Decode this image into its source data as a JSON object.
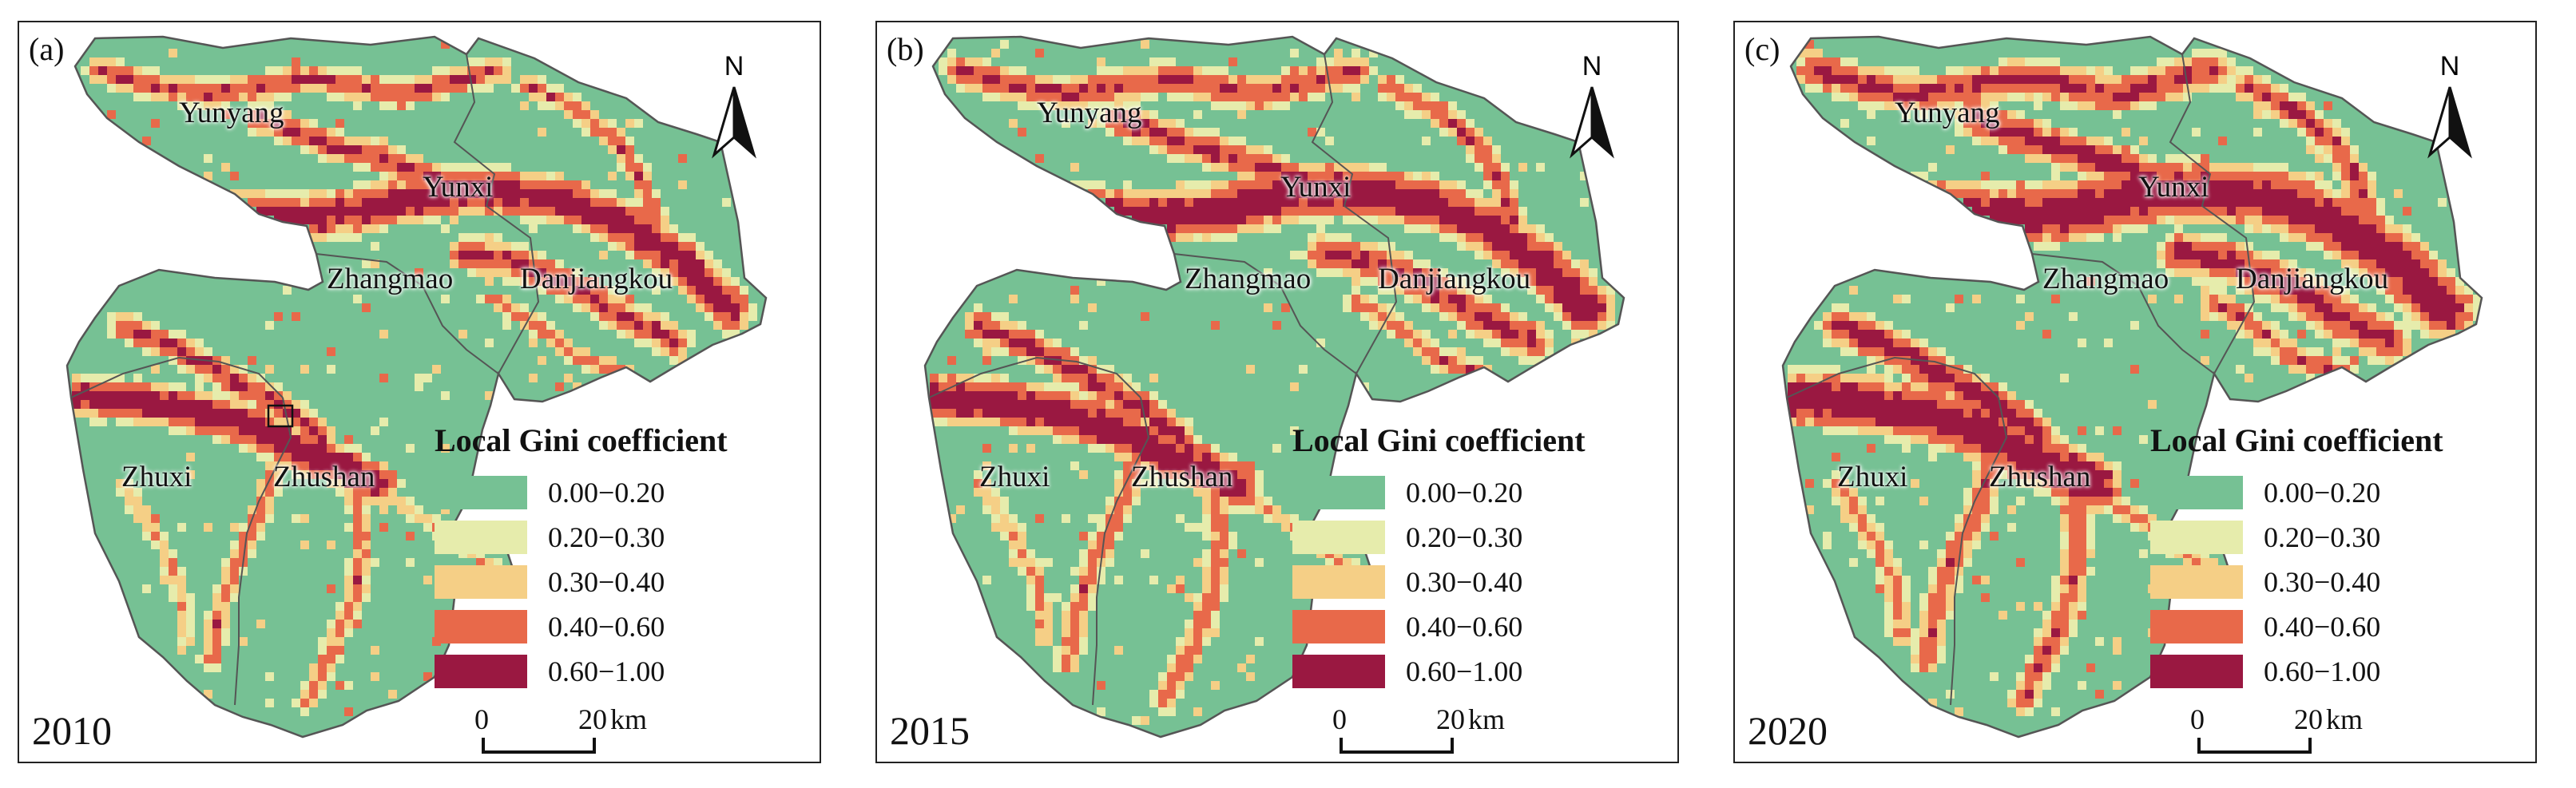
{
  "legend": {
    "title": "Local Gini coefficient",
    "classes": [
      {
        "label": "0.00−0.20",
        "color": "#76c194"
      },
      {
        "label": "0.20−0.30",
        "color": "#e6ecac"
      },
      {
        "label": "0.30−0.40",
        "color": "#f5cf86"
      },
      {
        "label": "0.40−0.60",
        "color": "#e8694a"
      },
      {
        "label": "0.60−1.00",
        "color": "#9a1841"
      }
    ]
  },
  "north_label": "N",
  "scale": {
    "zero": "0",
    "distance": "20",
    "unit": "km"
  },
  "counties": [
    "Yunyang",
    "Yunxi",
    "Zhangmao",
    "Danjiangkou",
    "Zhuxi",
    "Zhushan"
  ],
  "panels": [
    {
      "tag": "(a)",
      "year": "2010",
      "level": 0.18
    },
    {
      "tag": "(b)",
      "year": "2015",
      "level": 0.26
    },
    {
      "tag": "(c)",
      "year": "2020",
      "level": 0.36
    }
  ],
  "colors": {
    "border": "#555555",
    "frame": "#222222",
    "inset_box": "#111111"
  }
}
